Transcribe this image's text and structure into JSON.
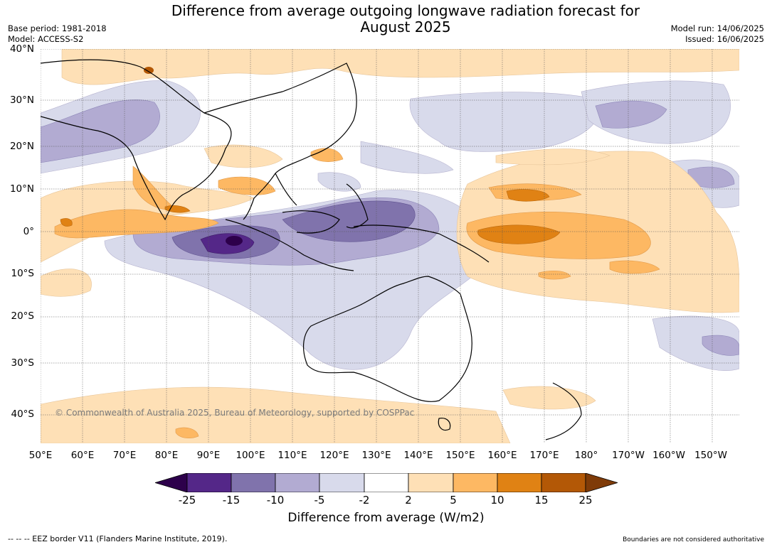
{
  "title": "Difference from average outgoing longwave radiation forecast for\nAugust 2025",
  "meta_left": {
    "base_period": "Base period: 1981-2018",
    "model": "Model: ACCESS-S2"
  },
  "meta_right": {
    "model_run": "Model run: 14/06/2025",
    "issued": "Issued: 16/06/2025"
  },
  "lat_labels": [
    "40°N",
    "30°N",
    "20°N",
    "10°N",
    "0°",
    "10°S",
    "20°S",
    "30°S",
    "40°S"
  ],
  "lon_labels": [
    "50°E",
    "60°E",
    "70°E",
    "80°E",
    "90°E",
    "100°E",
    "110°E",
    "120°E",
    "130°E",
    "140°E",
    "150°E",
    "160°E",
    "170°E",
    "180°",
    "170°W",
    "160°W",
    "150°W"
  ],
  "copyright": "© Commonwealth of Australia 2025, Bureau of Meteorology, supported by COSPPac",
  "colorbar": {
    "ticks": [
      "-25",
      "-15",
      "-10",
      "-5",
      "-2",
      "2",
      "5",
      "10",
      "15",
      "25"
    ],
    "colors": [
      "#2d004b",
      "#542788",
      "#8073ac",
      "#b2abd2",
      "#d8daeb",
      "#ffffff",
      "#fee0b6",
      "#fdb863",
      "#e08214",
      "#b35806",
      "#7f3b08"
    ],
    "label": "Difference from average (W/m2)"
  },
  "footer_left": "-- -- -- EEZ border V11 (Flanders Marine Institute, 2019).",
  "footer_right": "Boundaries are not considered authoritative"
}
